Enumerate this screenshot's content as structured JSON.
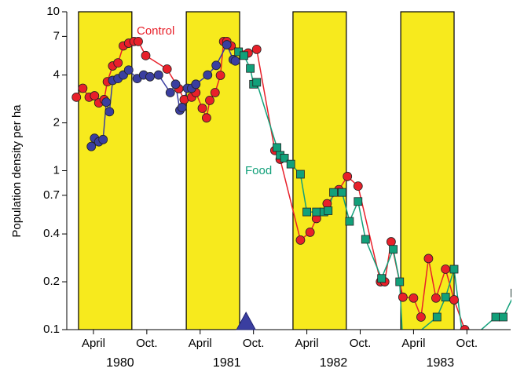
{
  "chart_data": {
    "type": "line",
    "y_label": "Population density per ha",
    "log_y": true,
    "ylim": [
      0.1,
      10
    ],
    "yticks": [
      0.1,
      0.2,
      0.4,
      0.7,
      1,
      2,
      4,
      7,
      10
    ],
    "xlim": [
      1980.0,
      1984.16
    ],
    "xticks": [
      {
        "value": 1980.25,
        "label": "April"
      },
      {
        "value": 1980.75,
        "label": "Oct."
      },
      {
        "value": 1981.25,
        "label": "April"
      },
      {
        "value": 1981.75,
        "label": "Oct."
      },
      {
        "value": 1982.25,
        "label": "April"
      },
      {
        "value": 1982.75,
        "label": "Oct."
      },
      {
        "value": 1983.25,
        "label": "April"
      },
      {
        "value": 1983.75,
        "label": "Oct."
      }
    ],
    "year_labels": [
      {
        "value": 1980.5,
        "label": "1980"
      },
      {
        "value": 1981.5,
        "label": "1981"
      },
      {
        "value": 1982.5,
        "label": "1982"
      },
      {
        "value": 1983.5,
        "label": "1983"
      }
    ],
    "shaded_periods": [
      [
        1980.11,
        1980.61
      ],
      [
        1981.12,
        1981.62
      ],
      [
        1982.12,
        1982.62
      ],
      [
        1983.13,
        1983.63
      ]
    ],
    "shade_color": "#f7ea1d",
    "arrow_marker": {
      "x": 1981.68,
      "color": "#3a3ea0"
    },
    "annotations": [
      "Control",
      "Food"
    ],
    "series": [
      {
        "name": "Control",
        "color": "#e8202a",
        "marker": "circle",
        "x": [
          1980.09,
          1980.15,
          1980.21,
          1980.26,
          1980.3,
          1980.35,
          1980.38,
          1980.43,
          1980.48,
          1980.53,
          1980.58,
          1980.63,
          1980.67,
          1980.74,
          1980.94,
          1981.05,
          1981.1,
          1981.17,
          1981.21,
          1981.27,
          1981.31,
          1981.34,
          1981.39,
          1981.44,
          1981.47,
          1981.5,
          1981.54,
          1981.7,
          1981.78,
          1981.95,
          1982.0,
          1982.19,
          1982.28,
          1982.34,
          1982.44,
          1982.55,
          1982.63,
          1982.73,
          1982.94,
          1982.98,
          1983.04,
          1983.15,
          1983.25,
          1983.32,
          1983.39,
          1983.46,
          1983.55,
          1983.63,
          1983.73
        ],
        "values": [
          2.9,
          3.3,
          2.9,
          2.96,
          2.67,
          2.8,
          3.63,
          4.56,
          4.77,
          6.1,
          6.34,
          6.5,
          6.5,
          5.3,
          4.36,
          3.28,
          2.8,
          2.9,
          3.1,
          2.47,
          2.15,
          2.77,
          3.1,
          3.98,
          6.5,
          6.5,
          6.1,
          5.5,
          5.8,
          1.34,
          1.18,
          0.366,
          0.41,
          0.5,
          0.62,
          0.76,
          0.92,
          0.8,
          0.2,
          0.2,
          0.357,
          0.16,
          0.158,
          0.12,
          0.28,
          0.158,
          0.24,
          0.154,
          0.1
        ]
      },
      {
        "color": "#3a3ea0",
        "marker": "circle",
        "x": [
          1980.23,
          1980.26,
          1980.3,
          1980.34,
          1980.37,
          1980.4,
          1980.43,
          1980.48,
          1980.53,
          1980.58,
          1980.66,
          1980.72,
          1980.78,
          1980.86,
          1980.97,
          1981.02,
          1981.06,
          1981.08,
          1981.13,
          1981.17,
          1981.21,
          1981.32,
          1981.4,
          1981.5,
          1981.56,
          1981.58
        ],
        "values": [
          1.42,
          1.6,
          1.52,
          1.57,
          2.7,
          2.35,
          3.7,
          3.8,
          4.0,
          4.3,
          3.8,
          4.0,
          3.9,
          4.0,
          3.1,
          3.5,
          2.4,
          2.5,
          3.3,
          3.3,
          3.5,
          4.0,
          4.6,
          6.2,
          5.0,
          4.9
        ]
      },
      {
        "name": "Food",
        "color": "#12a07a",
        "marker": "square",
        "x": [
          1981.61,
          1981.66,
          1981.72,
          1981.75,
          1981.78,
          1981.97,
          1982.0,
          1982.04,
          1982.1,
          1982.19,
          1982.25,
          1982.34,
          1982.41,
          1982.45,
          1982.5,
          1982.58,
          1982.65,
          1982.73,
          1982.8,
          1982.95,
          1983.06,
          1983.12,
          1983.15,
          1983.47,
          1983.55,
          1983.63,
          1983.72,
          1984.02,
          1984.09,
          1984.2
        ],
        "values": [
          5.6,
          5.3,
          4.4,
          3.5,
          3.6,
          1.4,
          1.25,
          1.2,
          1.1,
          0.95,
          0.55,
          0.55,
          0.55,
          0.56,
          0.73,
          0.73,
          0.48,
          0.64,
          0.37,
          0.21,
          0.32,
          0.2,
          0.08,
          0.12,
          0.16,
          0.24,
          0.08,
          0.12,
          0.12,
          0.17
        ]
      }
    ]
  }
}
